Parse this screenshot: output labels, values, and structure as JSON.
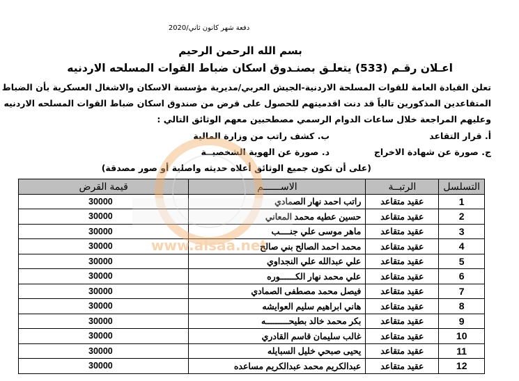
{
  "header": {
    "batch": "دفعة شهر كانون ثاني/2020",
    "bismillah": "بسم الله الرحمن الرحيم",
    "announcement": "اعـلان رقـم (533) يتعلـق بصنـدوق اسكان ضباط القوات المسلحه الاردنيه"
  },
  "body": {
    "paragraph": [
      "تعلن القيادة العامة للقوات المسلحة الاردنية-الجيش العربي/مديرية مؤسسة الاسكان والاشغال العسكرية بأن الضباط",
      "المتقاعدين المذكورين تالياً قد دنت اقدميتهم للحصول على قرض من صندوق اسكان ضباط القوات المسلحه الاردنيه",
      "وعليهم المراجعة خلال ساعات الدوام الرسمي مصطحبين معهم الوثائق التالي :"
    ],
    "documents": {
      "a": "أ. قرار التقاعد",
      "b": "ب. كشف راتب من وزارة المالية",
      "c": "ج. صورة عن شهادة الاخراج",
      "d": "د. صورة عن الهوية الشخصيــة"
    },
    "note": "(على أن تكون جميع الوثائق أعلاه حديثه واصلية أو صور مصدقة)"
  },
  "watermark": {
    "site": "www.alsaa.net",
    "name": "الساعة",
    "color": "#f0a050"
  },
  "table": {
    "headers": {
      "serial": "التسلسل",
      "rank": "الرتبــة",
      "name": "الاســــــم",
      "amount": "قيمة القرض"
    },
    "rows": [
      {
        "serial": "1",
        "rank": "عقيد متقاعد",
        "name": "راتب احمد نهار الصمادي",
        "amount": "30000"
      },
      {
        "serial": "2",
        "rank": "عقيد متقاعد",
        "name": "حسين عطيه محمد المعاني",
        "amount": "30000"
      },
      {
        "serial": "3",
        "rank": "عقيد متقاعد",
        "name": "ماهر موسى علي جنــــب",
        "amount": "30000"
      },
      {
        "serial": "4",
        "rank": "عقيد متقاعد",
        "name": "محمد احمد الصالح بني صالح",
        "amount": "30000"
      },
      {
        "serial": "5",
        "rank": "عقيد متقاعد",
        "name": "علي عبدالله علي النجداوي",
        "amount": "30000"
      },
      {
        "serial": "6",
        "rank": "عقيد متقاعد",
        "name": "علي محمد نهار الكــــــوره",
        "amount": "30000"
      },
      {
        "serial": "7",
        "rank": "عقيد متقاعد",
        "name": "فيصل محمد مصطفى الصمادي",
        "amount": "30000"
      },
      {
        "serial": "8",
        "rank": "عقيد متقاعد",
        "name": "هاني ابراهيم سليم العوايشه",
        "amount": "30000"
      },
      {
        "serial": "9",
        "rank": "عقيد متقاعد",
        "name": "بكر محمد خالد بطيحـــــــــه",
        "amount": "30000"
      },
      {
        "serial": "10",
        "rank": "عقيد متقاعد",
        "name": "غالب سليمان قاسم القادري",
        "amount": "30000"
      },
      {
        "serial": "11",
        "rank": "عقيد متقاعد",
        "name": "يحيى صبحي خليل السبايله",
        "amount": "30000"
      },
      {
        "serial": "12",
        "rank": "عقيد متقاعد",
        "name": "عبدالكريم محمد عبدالكريم مساعده",
        "amount": "30000"
      }
    ]
  }
}
